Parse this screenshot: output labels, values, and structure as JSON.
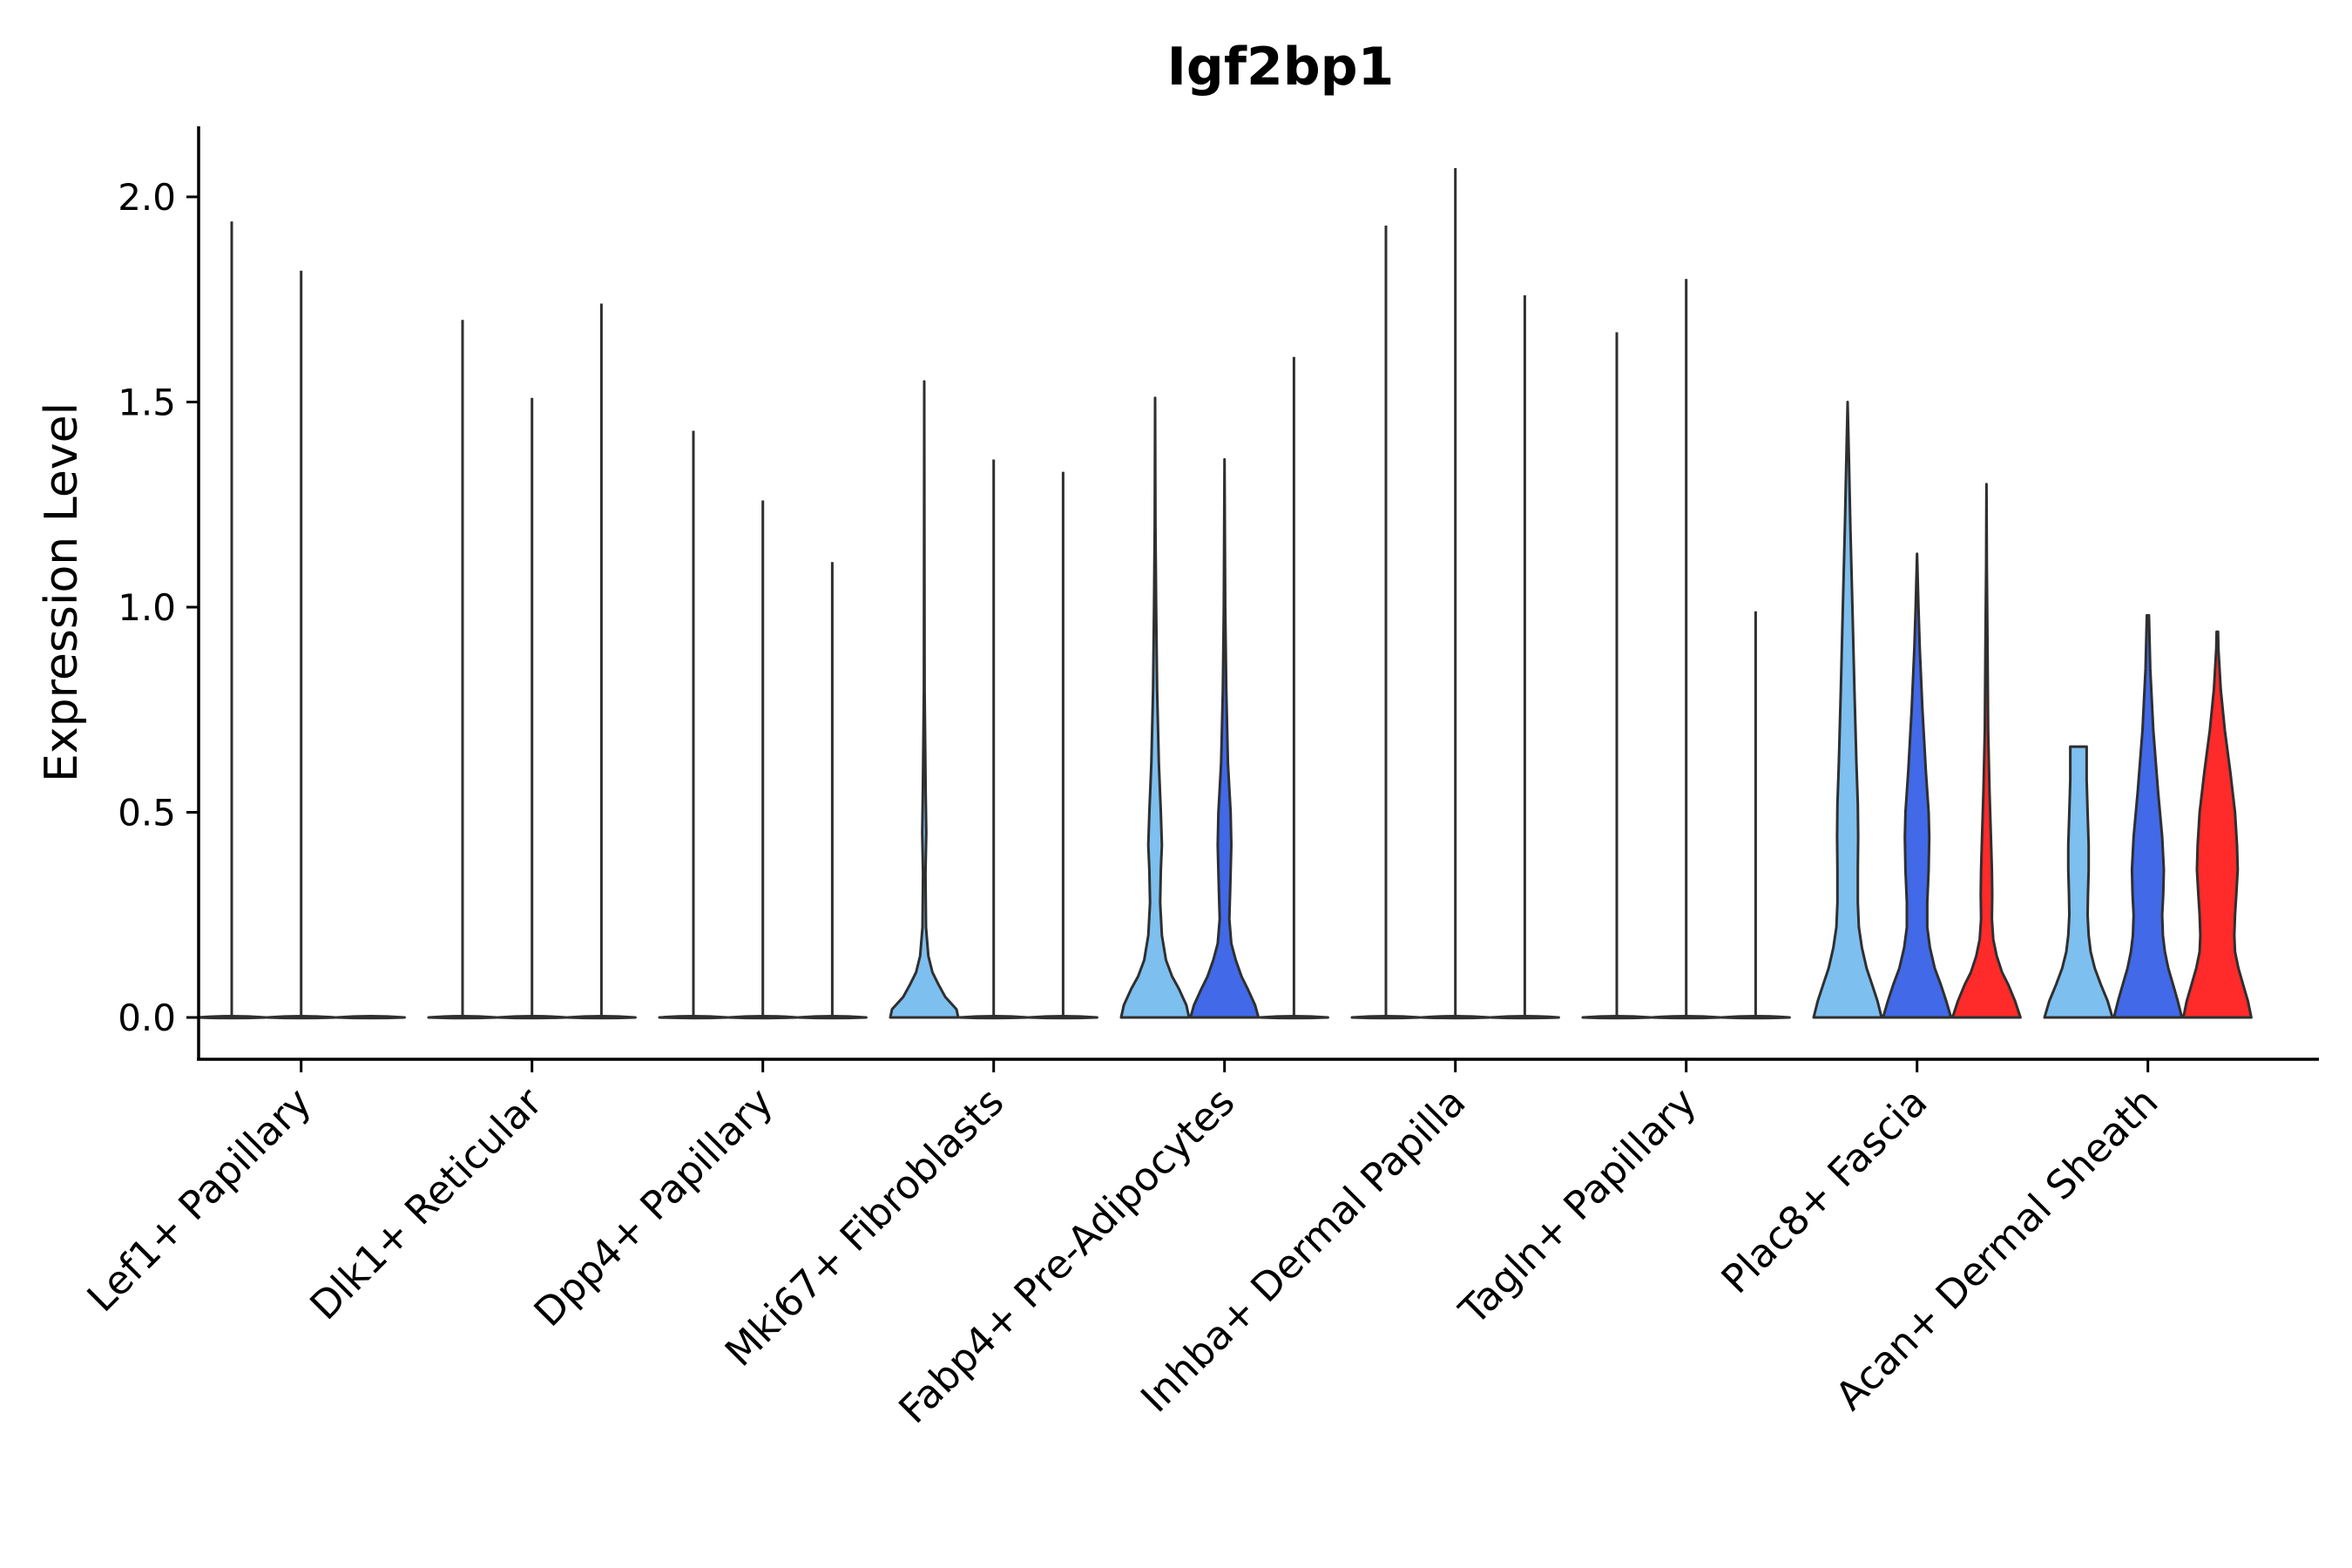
{
  "chart_data": {
    "type": "violin",
    "title": "Igf2bp1",
    "xlabel": "",
    "ylabel": "Expression Level",
    "ylim": [
      -0.1,
      2.18
    ],
    "yticks": [
      0.0,
      0.5,
      1.0,
      1.5,
      2.0
    ],
    "ytick_labels": [
      "0.0",
      "0.5",
      "1.0",
      "1.5",
      "2.0"
    ],
    "grid": false,
    "legend": "none",
    "colors": {
      "Fibro": "#7DBFEF",
      "Myofibro": "#4169E8",
      "Chondro": "#FF2A2A"
    },
    "categories": [
      "Lef1+ Papillary",
      "Dlk1+ Reticular",
      "Dpp4+ Papillary",
      "Mki67+ Fibroblasts",
      "Fabp4+ Pre-Adipocytes",
      "Inhba+ Dermal Papilla",
      "Tagln+ Papillary",
      "Plac8+ Fascia",
      "Acan+ Dermal Sheath"
    ],
    "violins": [
      {
        "group": "Lef1+ Papillary",
        "slot": 0,
        "max": 1.94,
        "color": "#7DBFEF",
        "shape": "flat"
      },
      {
        "group": "Lef1+ Papillary",
        "slot": 1,
        "max": 1.82,
        "color": "#4169E8",
        "shape": "flat"
      },
      {
        "group": "Lef1+ Papillary",
        "slot": 2,
        "max": 0.0,
        "color": "#FF2A2A",
        "shape": "flat"
      },
      {
        "group": "Dlk1+ Reticular",
        "slot": 0,
        "max": 1.7,
        "color": "#7DBFEF",
        "shape": "flat"
      },
      {
        "group": "Dlk1+ Reticular",
        "slot": 1,
        "max": 1.51,
        "color": "#4169E8",
        "shape": "flat"
      },
      {
        "group": "Dlk1+ Reticular",
        "slot": 2,
        "max": 1.74,
        "color": "#FF2A2A",
        "shape": "flat"
      },
      {
        "group": "Dpp4+ Papillary",
        "slot": 0,
        "max": 1.43,
        "color": "#7DBFEF",
        "shape": "flat"
      },
      {
        "group": "Dpp4+ Papillary",
        "slot": 1,
        "max": 1.26,
        "color": "#4169E8",
        "shape": "flat"
      },
      {
        "group": "Dpp4+ Papillary",
        "slot": 2,
        "max": 1.11,
        "color": "#FF2A2A",
        "shape": "flat"
      },
      {
        "group": "Mki67+ Fibroblasts",
        "slot": 0,
        "max": 1.55,
        "color": "#7DBFEF",
        "shape": "bump",
        "profile": [
          [
            0.0,
            1.0
          ],
          [
            0.02,
            0.95
          ],
          [
            0.05,
            0.62
          ],
          [
            0.08,
            0.42
          ],
          [
            0.11,
            0.24
          ],
          [
            0.15,
            0.12
          ],
          [
            0.22,
            0.05
          ],
          [
            0.35,
            0.035
          ],
          [
            0.45,
            0.06
          ],
          [
            0.55,
            0.04
          ],
          [
            0.8,
            0.01
          ],
          [
            1.55,
            0.0
          ]
        ]
      },
      {
        "group": "Mki67+ Fibroblasts",
        "slot": 1,
        "max": 1.36,
        "color": "#4169E8",
        "shape": "flat"
      },
      {
        "group": "Mki67+ Fibroblasts",
        "slot": 2,
        "max": 1.33,
        "color": "#FF2A2A",
        "shape": "flat"
      },
      {
        "group": "Fabp4+ Pre-Adipocytes",
        "slot": 0,
        "max": 1.51,
        "color": "#7DBFEF",
        "shape": "bump",
        "profile": [
          [
            0.0,
            1.0
          ],
          [
            0.03,
            0.92
          ],
          [
            0.07,
            0.7
          ],
          [
            0.1,
            0.5
          ],
          [
            0.14,
            0.32
          ],
          [
            0.2,
            0.2
          ],
          [
            0.28,
            0.15
          ],
          [
            0.36,
            0.17
          ],
          [
            0.42,
            0.2
          ],
          [
            0.5,
            0.17
          ],
          [
            0.62,
            0.11
          ],
          [
            0.8,
            0.06
          ],
          [
            1.0,
            0.03
          ],
          [
            1.2,
            0.01
          ],
          [
            1.51,
            0.0
          ]
        ]
      },
      {
        "group": "Fabp4+ Pre-Adipocytes",
        "slot": 1,
        "max": 1.36,
        "color": "#4169E8",
        "shape": "bump",
        "profile": [
          [
            0.0,
            1.0
          ],
          [
            0.03,
            0.9
          ],
          [
            0.07,
            0.68
          ],
          [
            0.1,
            0.5
          ],
          [
            0.14,
            0.33
          ],
          [
            0.18,
            0.2
          ],
          [
            0.24,
            0.14
          ],
          [
            0.32,
            0.17
          ],
          [
            0.42,
            0.2
          ],
          [
            0.5,
            0.18
          ],
          [
            0.62,
            0.1
          ],
          [
            0.8,
            0.05
          ],
          [
            1.0,
            0.02
          ],
          [
            1.36,
            0.0
          ]
        ]
      },
      {
        "group": "Fabp4+ Pre-Adipocytes",
        "slot": 2,
        "max": 1.61,
        "color": "#FF2A2A",
        "shape": "flat"
      },
      {
        "group": "Inhba+ Dermal Papilla",
        "slot": 0,
        "max": 1.93,
        "color": "#7DBFEF",
        "shape": "flat"
      },
      {
        "group": "Inhba+ Dermal Papilla",
        "slot": 1,
        "max": 2.07,
        "color": "#4169E8",
        "shape": "flat"
      },
      {
        "group": "Inhba+ Dermal Papilla",
        "slot": 2,
        "max": 1.76,
        "color": "#FF2A2A",
        "shape": "flat"
      },
      {
        "group": "Tagln+ Papillary",
        "slot": 0,
        "max": 1.67,
        "color": "#7DBFEF",
        "shape": "flat"
      },
      {
        "group": "Tagln+ Papillary",
        "slot": 1,
        "max": 1.8,
        "color": "#4169E8",
        "shape": "flat"
      },
      {
        "group": "Tagln+ Papillary",
        "slot": 2,
        "max": 0.99,
        "color": "#FF2A2A",
        "shape": "flat"
      },
      {
        "group": "Plac8+ Fascia",
        "slot": 0,
        "max": 1.5,
        "color": "#7DBFEF",
        "shape": "bump",
        "profile": [
          [
            0.0,
            1.0
          ],
          [
            0.04,
            0.88
          ],
          [
            0.08,
            0.72
          ],
          [
            0.12,
            0.56
          ],
          [
            0.17,
            0.42
          ],
          [
            0.22,
            0.33
          ],
          [
            0.28,
            0.3
          ],
          [
            0.36,
            0.3
          ],
          [
            0.44,
            0.31
          ],
          [
            0.52,
            0.3
          ],
          [
            0.62,
            0.26
          ],
          [
            0.8,
            0.2
          ],
          [
            1.0,
            0.14
          ],
          [
            1.2,
            0.08
          ],
          [
            1.35,
            0.04
          ],
          [
            1.5,
            0.0
          ]
        ]
      },
      {
        "group": "Plac8+ Fascia",
        "slot": 1,
        "max": 1.13,
        "color": "#4169E8",
        "shape": "bump",
        "profile": [
          [
            0.0,
            1.0
          ],
          [
            0.04,
            0.86
          ],
          [
            0.08,
            0.7
          ],
          [
            0.12,
            0.52
          ],
          [
            0.17,
            0.38
          ],
          [
            0.22,
            0.3
          ],
          [
            0.28,
            0.3
          ],
          [
            0.36,
            0.34
          ],
          [
            0.44,
            0.36
          ],
          [
            0.5,
            0.34
          ],
          [
            0.6,
            0.26
          ],
          [
            0.75,
            0.16
          ],
          [
            0.9,
            0.08
          ],
          [
            1.0,
            0.04
          ],
          [
            1.13,
            0.0
          ]
        ]
      },
      {
        "group": "Plac8+ Fascia",
        "slot": 2,
        "max": 1.3,
        "color": "#FF2A2A",
        "shape": "bump",
        "profile": [
          [
            0.0,
            1.0
          ],
          [
            0.04,
            0.84
          ],
          [
            0.08,
            0.64
          ],
          [
            0.11,
            0.46
          ],
          [
            0.15,
            0.3
          ],
          [
            0.19,
            0.2
          ],
          [
            0.24,
            0.16
          ],
          [
            0.3,
            0.17
          ],
          [
            0.36,
            0.16
          ],
          [
            0.44,
            0.13
          ],
          [
            0.55,
            0.09
          ],
          [
            0.7,
            0.05
          ],
          [
            0.9,
            0.03
          ],
          [
            1.1,
            0.01
          ],
          [
            1.3,
            0.0
          ]
        ]
      },
      {
        "group": "Acan+ Dermal Sheath",
        "slot": 0,
        "max": 0.66,
        "color": "#7DBFEF",
        "shape": "bump",
        "profile": [
          [
            0.0,
            1.0
          ],
          [
            0.04,
            0.86
          ],
          [
            0.08,
            0.66
          ],
          [
            0.12,
            0.48
          ],
          [
            0.16,
            0.36
          ],
          [
            0.2,
            0.3
          ],
          [
            0.25,
            0.27
          ],
          [
            0.3,
            0.28
          ],
          [
            0.36,
            0.3
          ],
          [
            0.42,
            0.3
          ],
          [
            0.5,
            0.27
          ],
          [
            0.58,
            0.24
          ],
          [
            0.63,
            0.24
          ],
          [
            0.66,
            0.24
          ]
        ]
      },
      {
        "group": "Acan+ Dermal Sheath",
        "slot": 1,
        "max": 0.98,
        "color": "#4169E8",
        "shape": "bump",
        "profile": [
          [
            0.0,
            1.0
          ],
          [
            0.04,
            0.88
          ],
          [
            0.08,
            0.74
          ],
          [
            0.12,
            0.6
          ],
          [
            0.16,
            0.5
          ],
          [
            0.2,
            0.44
          ],
          [
            0.25,
            0.42
          ],
          [
            0.3,
            0.45
          ],
          [
            0.36,
            0.47
          ],
          [
            0.44,
            0.42
          ],
          [
            0.55,
            0.3
          ],
          [
            0.7,
            0.16
          ],
          [
            0.85,
            0.07
          ],
          [
            0.98,
            0.03
          ]
        ]
      },
      {
        "group": "Acan+ Dermal Sheath",
        "slot": 2,
        "max": 0.94,
        "color": "#FF2A2A",
        "shape": "bump",
        "profile": [
          [
            0.0,
            1.0
          ],
          [
            0.04,
            0.9
          ],
          [
            0.08,
            0.76
          ],
          [
            0.12,
            0.62
          ],
          [
            0.16,
            0.52
          ],
          [
            0.2,
            0.5
          ],
          [
            0.25,
            0.52
          ],
          [
            0.3,
            0.56
          ],
          [
            0.36,
            0.6
          ],
          [
            0.42,
            0.58
          ],
          [
            0.5,
            0.52
          ],
          [
            0.6,
            0.38
          ],
          [
            0.7,
            0.22
          ],
          [
            0.8,
            0.1
          ],
          [
            0.9,
            0.03
          ],
          [
            0.94,
            0.02
          ]
        ]
      }
    ]
  }
}
